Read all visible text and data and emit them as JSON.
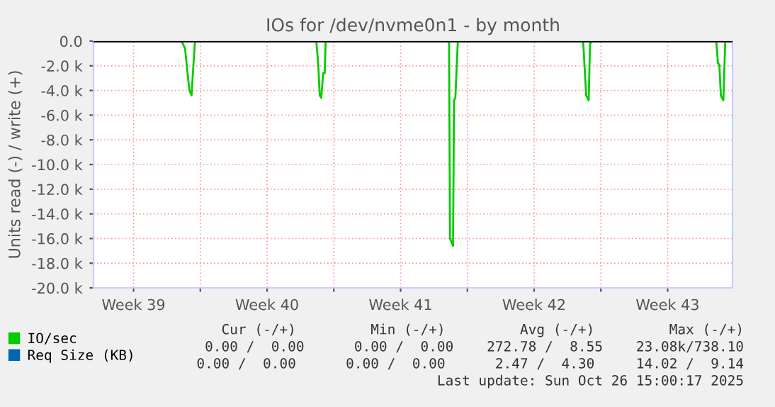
{
  "chart_data": {
    "type": "line",
    "title": "IOs for /dev/nvme0n1 - by month",
    "ylabel": "Units read (-) / write (+)",
    "x": [
      "2025-09-23T09:36",
      "2025-09-28T00:29",
      "2025-09-28T04:48",
      "2025-09-28T07:55",
      "2025-09-28T10:19",
      "2025-09-28T12:58",
      "2025-09-28T14:38",
      "2025-09-28T17:17",
      "2025-10-05T01:55",
      "2025-10-05T04:19",
      "2025-10-05T06:14",
      "2025-10-05T08:10",
      "2025-10-05T10:34",
      "2025-10-05T12:29",
      "2025-10-05T13:41",
      "2025-10-12T00:58",
      "2025-10-12T02:10",
      "2025-10-12T06:00",
      "2025-10-12T07:12",
      "2025-10-12T08:53",
      "2025-10-12T12:00",
      "2025-10-19T01:41",
      "2025-10-19T05:31",
      "2025-10-19T08:38",
      "2025-10-19T10:19",
      "2025-10-19T12:58",
      "2025-10-26T01:12",
      "2025-10-26T03:22",
      "2025-10-26T05:02",
      "2025-10-26T06:58",
      "2025-10-26T10:05",
      "2025-10-26T12:29",
      "2025-10-26T21:36"
    ],
    "series": [
      {
        "name": "IO/sec",
        "color": "#00cc00",
        "values": [
          0,
          0,
          -600,
          -2600,
          -4000,
          -4400,
          -2600,
          0,
          0,
          -1800,
          -4400,
          -4600,
          -2600,
          -2600,
          0,
          0,
          -16000,
          -16600,
          -4800,
          -4600,
          0,
          0,
          -4400,
          -4800,
          -200,
          0,
          0,
          -1800,
          -1900,
          -4400,
          -4800,
          0,
          0
        ]
      },
      {
        "name": "Req Size (KB)",
        "color": "#0066b3",
        "values": [
          null,
          null,
          null,
          null,
          null,
          null,
          null,
          null,
          null,
          null,
          null,
          null,
          null,
          null,
          null,
          null,
          null,
          null,
          null,
          null,
          null,
          null,
          null,
          null,
          null,
          null,
          null,
          null,
          null,
          null,
          null,
          null,
          null
        ]
      }
    ],
    "xlim": [
      "2025-09-23T09:36",
      "2025-10-26T21:36"
    ],
    "xticks": [
      {
        "value": "2025-09-25T12:00",
        "label": "Week 39"
      },
      {
        "value": "2025-09-29",
        "label": null
      },
      {
        "value": "2025-10-02T12:00",
        "label": "Week 40"
      },
      {
        "value": "2025-10-06",
        "label": null
      },
      {
        "value": "2025-10-09T12:00",
        "label": "Week 41"
      },
      {
        "value": "2025-10-13",
        "label": null
      },
      {
        "value": "2025-10-16T12:00",
        "label": "Week 42"
      },
      {
        "value": "2025-10-20",
        "label": null
      },
      {
        "value": "2025-10-23T12:00",
        "label": "Week 43"
      }
    ],
    "ylim": [
      -20000,
      0
    ],
    "yticks": [
      {
        "value": 0,
        "label": "0.0"
      },
      {
        "value": -2000,
        "label": "-2.0 k"
      },
      {
        "value": -4000,
        "label": "-4.0 k"
      },
      {
        "value": -6000,
        "label": "-6.0 k"
      },
      {
        "value": -8000,
        "label": "-8.0 k"
      },
      {
        "value": -10000,
        "label": "-10.0 k"
      },
      {
        "value": -12000,
        "label": "-12.0 k"
      },
      {
        "value": -14000,
        "label": "-14.0 k"
      },
      {
        "value": -16000,
        "label": "-16.0 k"
      },
      {
        "value": -18000,
        "label": "-18.0 k"
      },
      {
        "value": -20000,
        "label": "-20.0 k"
      }
    ],
    "ref_lines": [
      {
        "axis": "y",
        "value": 0,
        "color": "#000000"
      }
    ],
    "grid": true,
    "legend": "bottom left",
    "annotations": [
      "Cur (-/+)         Min (-/+)         Avg (-/+)         Max (-/+)",
      "0.00 /  0.00      0.00 /  0.00    272.78 /  8.55    23.08k/738.10",
      "0.00 /  0.00      0.00 /  0.00      2.47 /  4.30     14.02 /  9.14",
      "Last update: Sun Oct 26 15:00:17 2025"
    ]
  }
}
